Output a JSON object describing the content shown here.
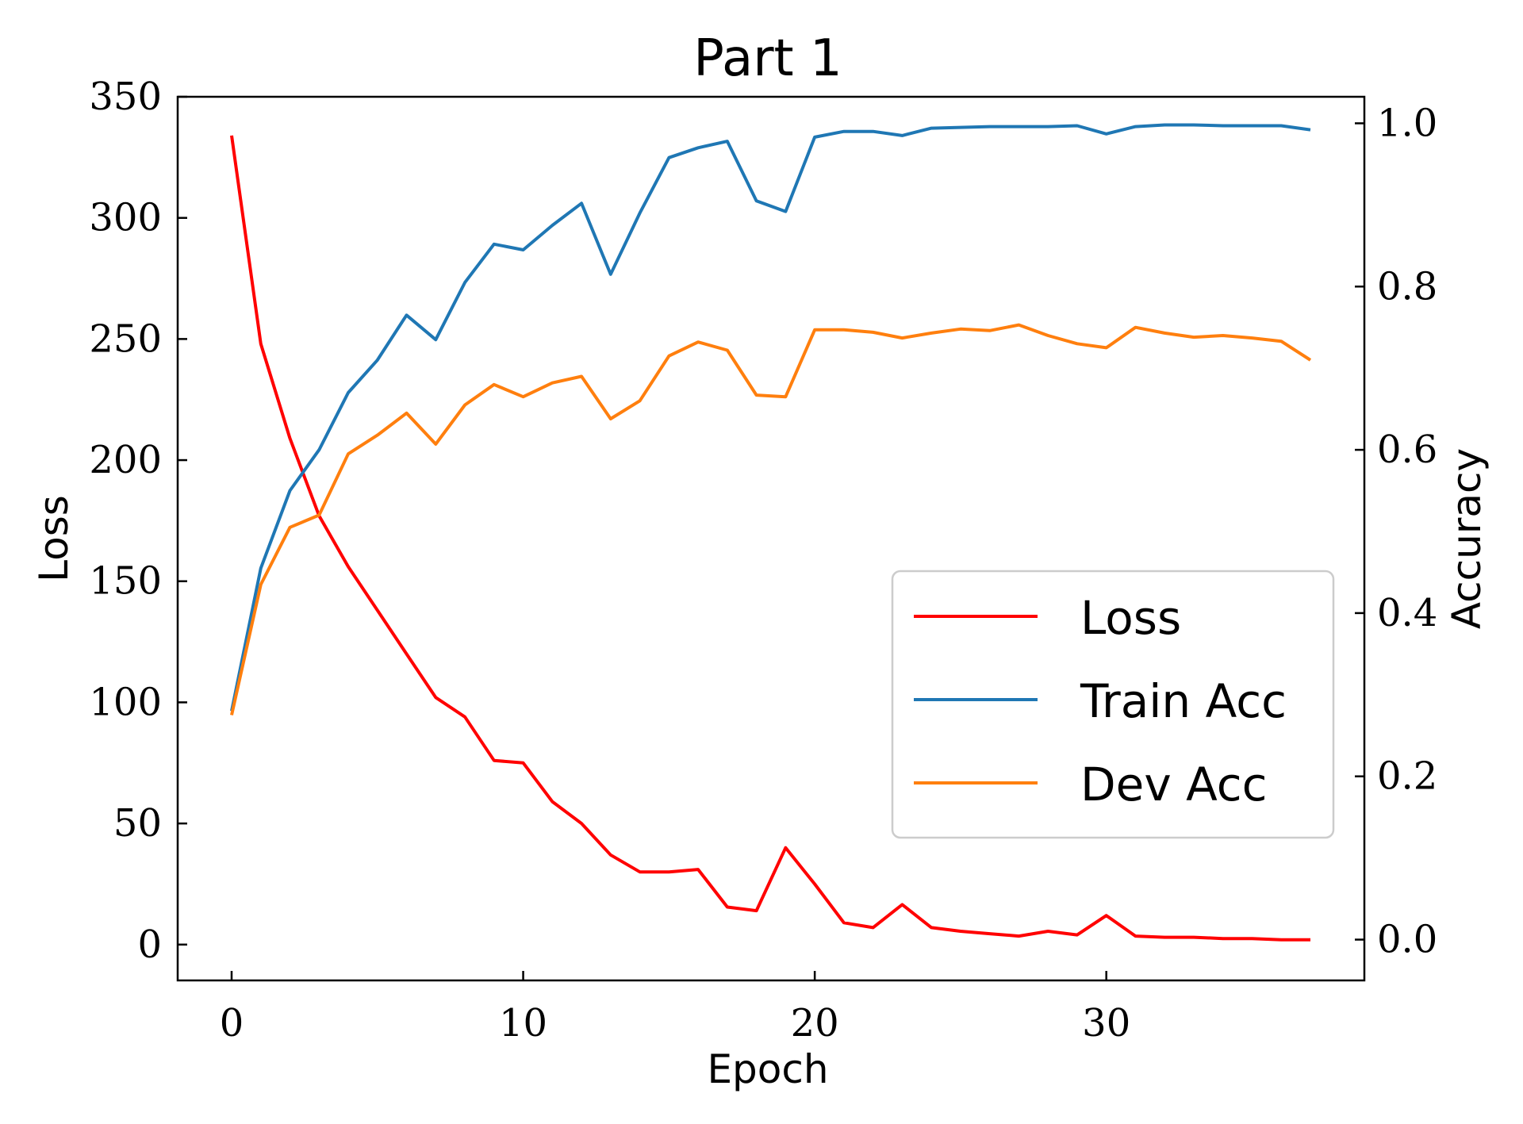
{
  "chart_data": {
    "type": "line",
    "title": "Part 1",
    "xlabel": "Epoch",
    "ylabel_left": "Loss",
    "ylabel_right": "Accuracy",
    "xlim": [
      -1.85,
      38.85
    ],
    "ylim_left": [
      -14.8,
      350
    ],
    "ylim_right": [
      -0.05,
      1.0325
    ],
    "x_ticks": [
      0,
      10,
      20,
      30
    ],
    "x_tick_labels": [
      "0",
      "10",
      "20",
      "30"
    ],
    "y_left_ticks": [
      0,
      50,
      100,
      150,
      200,
      250,
      300,
      350
    ],
    "y_left_tick_labels": [
      "0",
      "50",
      "100",
      "150",
      "200",
      "250",
      "300",
      "350"
    ],
    "y_right_ticks": [
      0.0,
      0.2,
      0.4,
      0.6,
      0.8,
      1.0
    ],
    "y_right_tick_labels": [
      "0.0",
      "0.2",
      "0.4",
      "0.6",
      "0.8",
      "1.0"
    ],
    "grid": false,
    "legend_position": "center-right",
    "x": [
      0,
      1,
      2,
      3,
      4,
      5,
      6,
      7,
      8,
      9,
      10,
      11,
      12,
      13,
      14,
      15,
      16,
      17,
      18,
      19,
      20,
      21,
      22,
      23,
      24,
      25,
      26,
      27,
      28,
      29,
      30,
      31,
      32,
      33,
      34,
      35,
      36,
      37
    ],
    "series": [
      {
        "name": "Loss",
        "axis": "left",
        "color": "#ff0000",
        "values": [
          334,
          248,
          209,
          177,
          156,
          138,
          120,
          102,
          94,
          76,
          75,
          59,
          50,
          37,
          30,
          30,
          31,
          15.5,
          14,
          40,
          25,
          9,
          7,
          16.5,
          7,
          5.5,
          4.5,
          3.5,
          5.5,
          4,
          12,
          3.5,
          3,
          3,
          2.5,
          2.5,
          2,
          2
        ]
      },
      {
        "name": "Train Acc",
        "axis": "right",
        "color": "#1f77b4",
        "values": [
          0.28,
          0.455,
          0.55,
          0.6,
          0.67,
          0.71,
          0.765,
          0.735,
          0.805,
          0.852,
          0.845,
          0.875,
          0.902,
          0.815,
          0.89,
          0.958,
          0.97,
          0.978,
          0.905,
          0.892,
          0.983,
          0.99,
          0.99,
          0.985,
          0.994,
          0.995,
          0.996,
          0.996,
          0.996,
          0.997,
          0.987,
          0.996,
          0.998,
          0.998,
          0.997,
          0.997,
          0.997,
          0.992
        ]
      },
      {
        "name": "Dev Acc",
        "axis": "right",
        "color": "#ff7f0e",
        "values": [
          0.275,
          0.435,
          0.505,
          0.52,
          0.595,
          0.618,
          0.645,
          0.607,
          0.655,
          0.68,
          0.665,
          0.682,
          0.69,
          0.638,
          0.66,
          0.715,
          0.732,
          0.722,
          0.667,
          0.665,
          0.747,
          0.747,
          0.744,
          0.737,
          0.743,
          0.748,
          0.746,
          0.753,
          0.74,
          0.73,
          0.725,
          0.75,
          0.743,
          0.738,
          0.74,
          0.737,
          0.733,
          0.71
        ]
      }
    ]
  }
}
